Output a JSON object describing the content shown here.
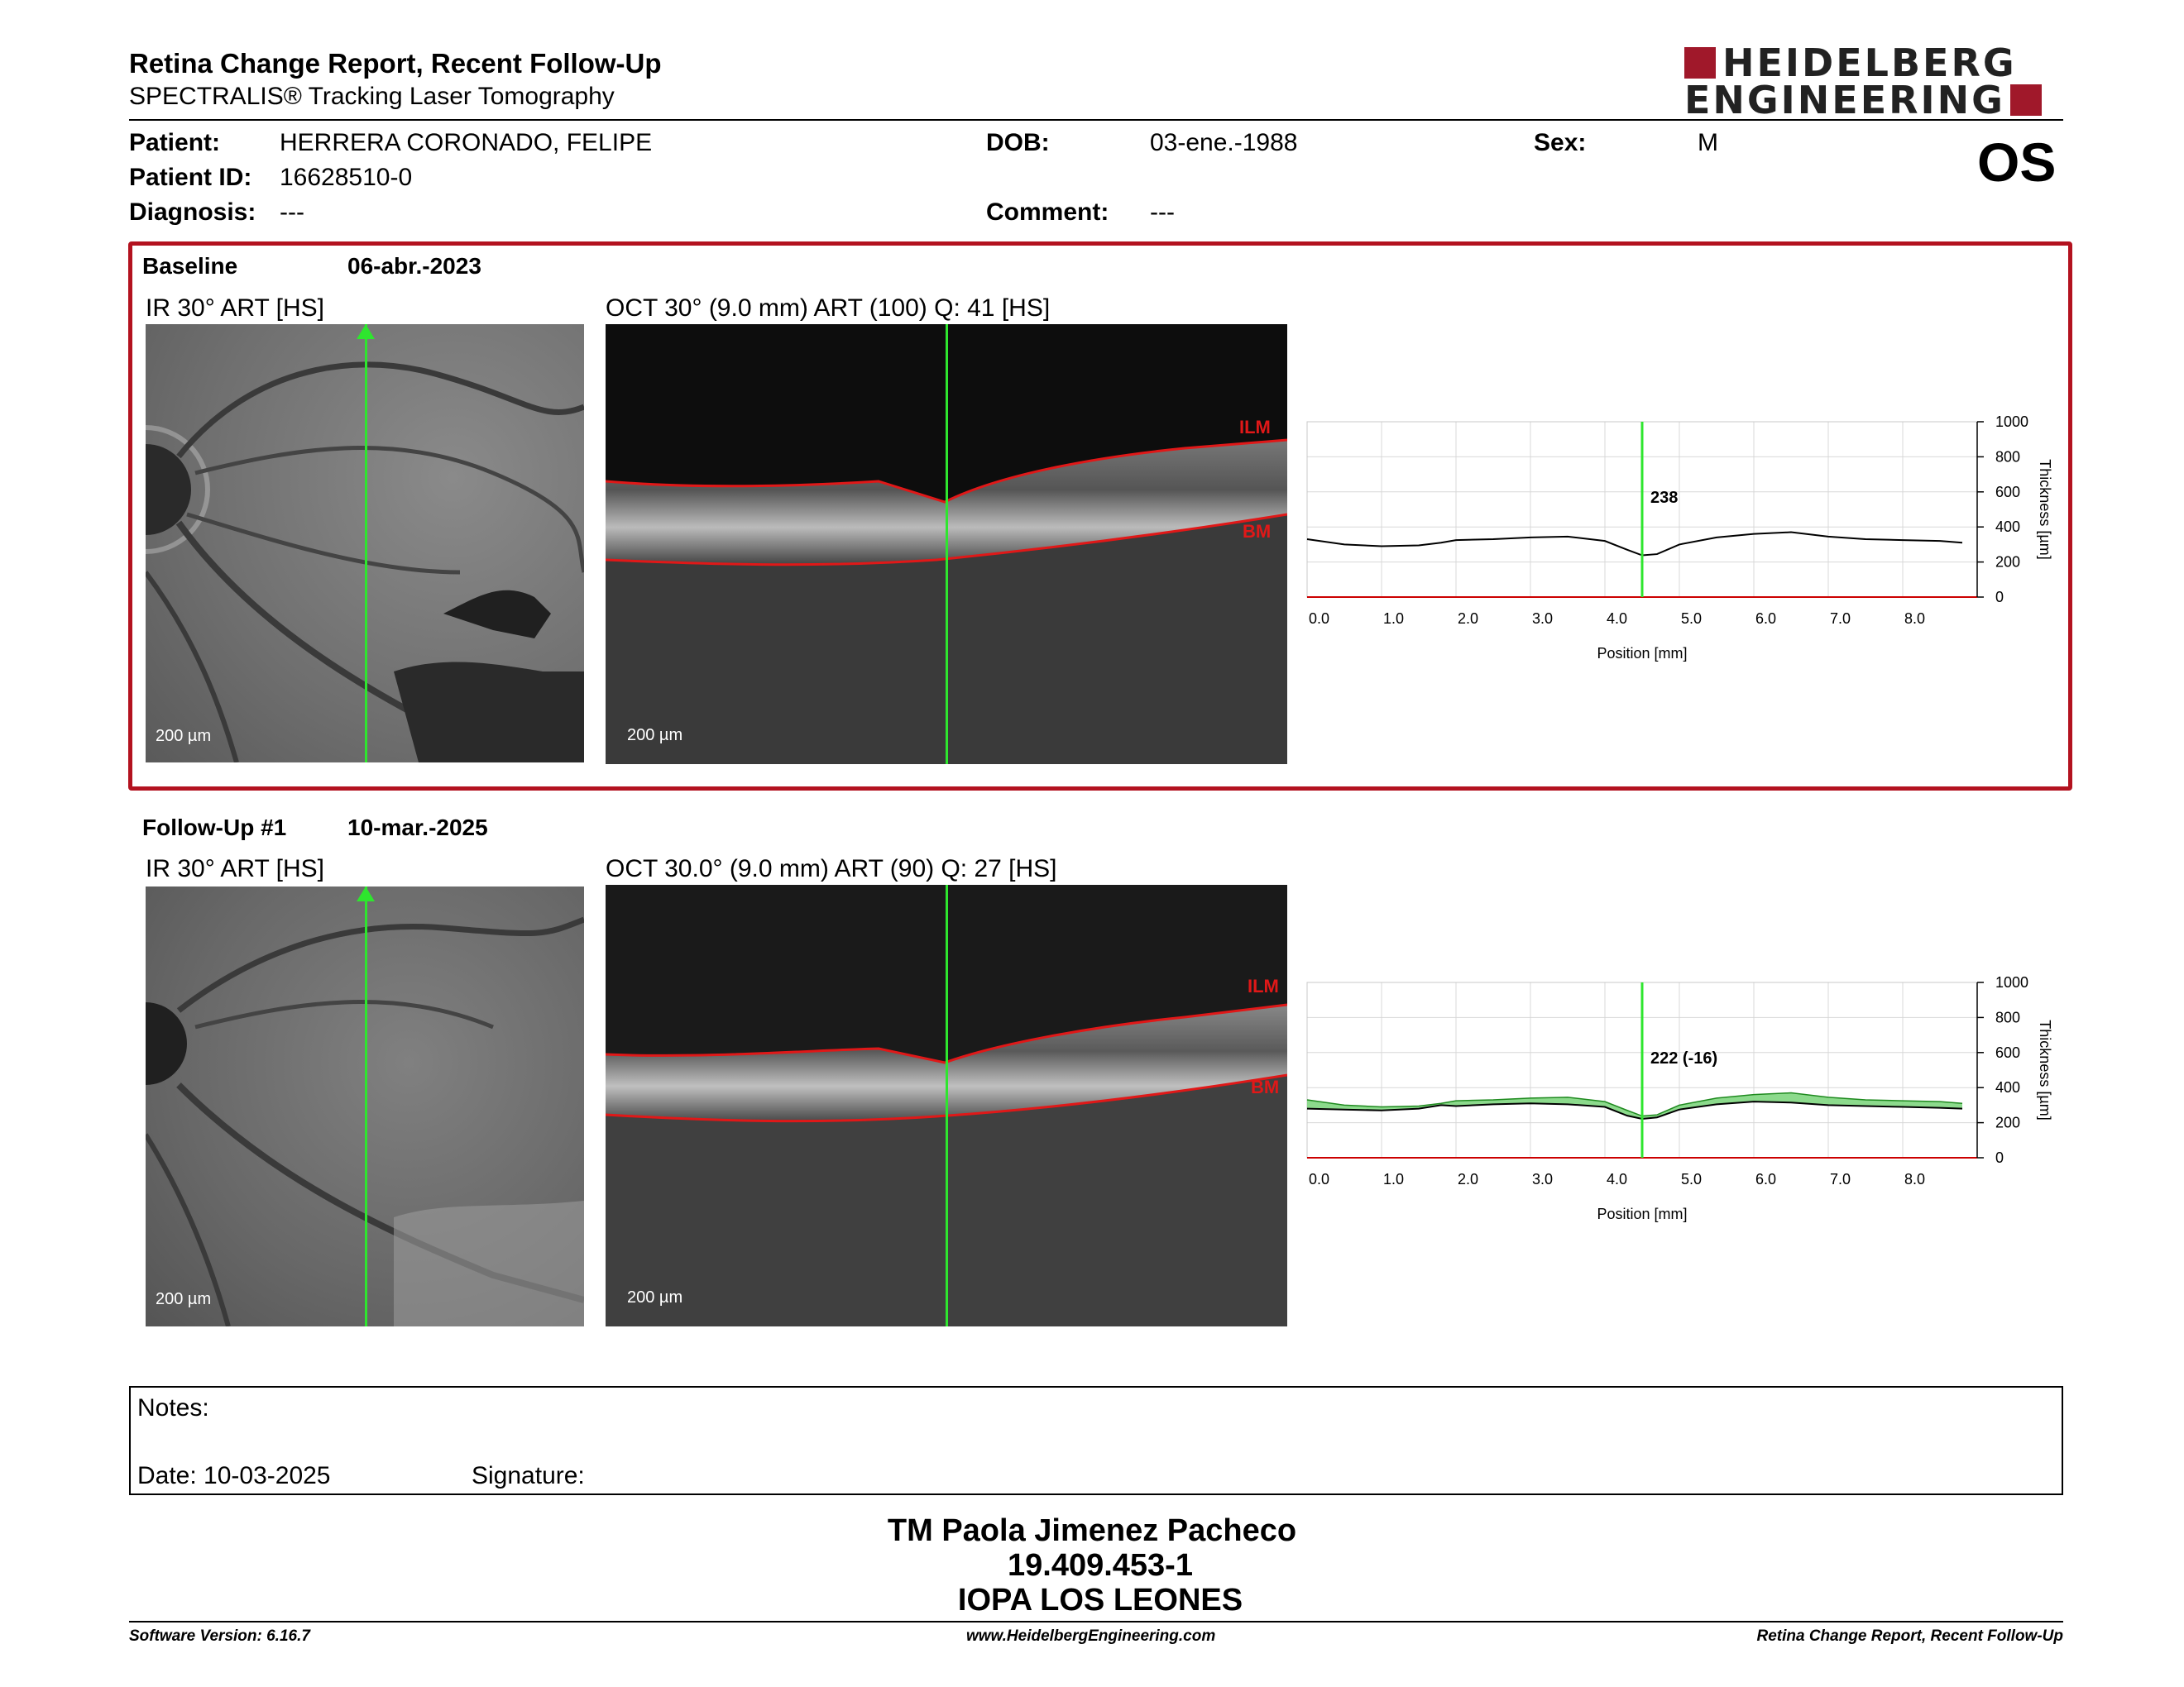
{
  "header": {
    "title": "Retina Change Report, Recent Follow-Up",
    "subtitle": "SPECTRALIS® Tracking Laser Tomography",
    "logo_line1": "HEIDELBERG",
    "logo_line2": "ENGINEERING",
    "eye": "OS"
  },
  "patient": {
    "patient_label": "Patient:",
    "patient_value": "HERRERA CORONADO, FELIPE",
    "id_label": "Patient ID:",
    "id_value": "16628510-0",
    "diagnosis_label": "Diagnosis:",
    "diagnosis_value": "---",
    "dob_label": "DOB:",
    "dob_value": "03-ene.-1988",
    "comment_label": "Comment:",
    "comment_value": "---",
    "sex_label": "Sex:",
    "sex_value": "M"
  },
  "baseline": {
    "label": "Baseline",
    "date": "06-abr.-2023",
    "ir_label": "IR 30° ART [HS]",
    "oct_label": "OCT 30° (9.0 mm) ART (100) Q: 41 [HS]",
    "scale_ir": "200 µm",
    "scale_oct": "200 µm",
    "ilm": "ILM",
    "bm": "BM",
    "highlight_color": "#b3121f"
  },
  "followup": {
    "label": "Follow-Up #1",
    "date": "10-mar.-2025",
    "ir_label": "IR 30° ART [HS]",
    "oct_label": "OCT 30.0° (9.0 mm) ART (90) Q: 27 [HS]",
    "scale_ir": "200 µm",
    "scale_oct": "200 µm",
    "ilm": "ILM",
    "bm": "BM"
  },
  "chart_data": [
    {
      "type": "line",
      "name": "baseline-thickness",
      "xlabel": "Position [mm]",
      "ylabel": "Thickness [µm]",
      "xlim": [
        0,
        9
      ],
      "ylim": [
        0,
        1000
      ],
      "x_ticks": [
        "0.0",
        "1.0",
        "2.0",
        "3.0",
        "4.0",
        "5.0",
        "6.0",
        "7.0",
        "8.0"
      ],
      "y_ticks": [
        "0",
        "200",
        "400",
        "600",
        "800",
        "1000"
      ],
      "cursor_x": 4.5,
      "cursor_label": "238",
      "series": [
        {
          "x": [
            0,
            0.5,
            1.0,
            1.5,
            1.8,
            2.0,
            2.5,
            3.0,
            3.5,
            4.0,
            4.3,
            4.5,
            4.7,
            5.0,
            5.5,
            6.0,
            6.5,
            7.0,
            7.5,
            8.0,
            8.5,
            8.8
          ],
          "y": [
            330,
            300,
            290,
            295,
            310,
            325,
            330,
            340,
            345,
            320,
            270,
            238,
            245,
            300,
            340,
            360,
            370,
            345,
            330,
            325,
            320,
            310
          ]
        }
      ]
    },
    {
      "type": "area",
      "name": "followup-thickness",
      "xlabel": "Position [mm]",
      "ylabel": "Thickness [µm]",
      "xlim": [
        0,
        9
      ],
      "ylim": [
        0,
        1000
      ],
      "x_ticks": [
        "0.0",
        "1.0",
        "2.0",
        "3.0",
        "4.0",
        "5.0",
        "6.0",
        "7.0",
        "8.0"
      ],
      "y_ticks": [
        "0",
        "200",
        "400",
        "600",
        "800",
        "1000"
      ],
      "cursor_x": 4.5,
      "cursor_label": "222 (-16)",
      "fill_color": "#7fd67f",
      "series": [
        {
          "name": "",
          "x": [
            0,
            0.5,
            1.0,
            1.5,
            1.8,
            2.0,
            2.5,
            3.0,
            3.5,
            4.0,
            4.3,
            4.5,
            4.7,
            5.0,
            5.5,
            6.0,
            6.5,
            7.0,
            7.5,
            8.0,
            8.5,
            8.8
          ],
          "y": [
            280,
            275,
            270,
            280,
            300,
            295,
            305,
            310,
            305,
            290,
            240,
            222,
            230,
            275,
            305,
            320,
            315,
            300,
            295,
            290,
            285,
            280
          ]
        },
        {
          "name": "",
          "x": [
            0,
            0.5,
            1.0,
            1.5,
            1.8,
            2.0,
            2.5,
            3.0,
            3.5,
            4.0,
            4.3,
            4.5,
            4.7,
            5.0,
            5.5,
            6.0,
            6.5,
            7.0,
            7.5,
            8.0,
            8.5,
            8.8
          ],
          "y": [
            330,
            300,
            290,
            295,
            310,
            325,
            330,
            340,
            345,
            320,
            270,
            238,
            245,
            300,
            340,
            360,
            370,
            345,
            330,
            325,
            320,
            310
          ]
        }
      ]
    }
  ],
  "notes": {
    "notes_label": "Notes:",
    "date_label": "Date: 10-03-2025",
    "signature_label": "Signature:"
  },
  "signatory": {
    "name": "TM Paola Jimenez Pacheco",
    "id": "19.409.453-1",
    "place": "IOPA LOS LEONES"
  },
  "footer": {
    "software": "Software Version: 6.16.7",
    "website": "www.HeidelbergEngineering.com",
    "report": "Retina Change Report, Recent Follow-Up"
  }
}
